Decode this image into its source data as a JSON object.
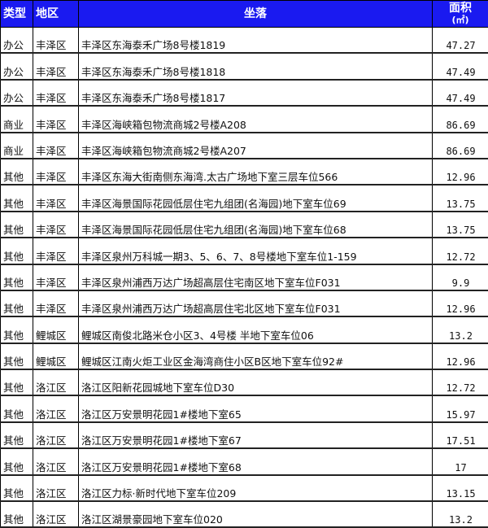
{
  "header": {
    "type": "类型",
    "region": "地区",
    "location": "坐落",
    "area": "面积",
    "area_unit": "(㎡)"
  },
  "header_color": "#1a1af0",
  "rows": [
    {
      "type": "办公",
      "region": "丰泽区",
      "location": "丰泽区东海泰禾广场8号楼1819",
      "area": "47.27"
    },
    {
      "type": "办公",
      "region": "丰泽区",
      "location": "丰泽区东海泰禾广场8号楼1818",
      "area": "47.49"
    },
    {
      "type": "办公",
      "region": "丰泽区",
      "location": "丰泽区东海泰禾广场8号楼1817",
      "area": "47.49"
    },
    {
      "type": "商业",
      "region": "丰泽区",
      "location": "丰泽区海峡箱包物流商城2号楼A208",
      "area": "86.69"
    },
    {
      "type": "商业",
      "region": "丰泽区",
      "location": "丰泽区海峡箱包物流商城2号楼A207",
      "area": "86.69"
    },
    {
      "type": "其他",
      "region": "丰泽区",
      "location": "丰泽区东海大街南侧东海湾.太古广场地下室三层车位566",
      "area": "12.96"
    },
    {
      "type": "其他",
      "region": "丰泽区",
      "location": "丰泽区海景国际花园低层住宅九组团(名海园)地下室车位69",
      "area": "13.75"
    },
    {
      "type": "其他",
      "region": "丰泽区",
      "location": "丰泽区海景国际花园低层住宅九组团(名海园)地下室车位68",
      "area": "13.75"
    },
    {
      "type": "其他",
      "region": "丰泽区",
      "location": "丰泽区泉州万科城一期3、5、6、7、8号楼地下室车位1-159",
      "area": "12.72"
    },
    {
      "type": "其他",
      "region": "丰泽区",
      "location": "丰泽区泉州浦西万达广场超高层住宅南区地下室车位F031",
      "area": "9.9"
    },
    {
      "type": "其他",
      "region": "丰泽区",
      "location": "丰泽区泉州浦西万达广场超高层住宅北区地下室车位F031",
      "area": "12.96"
    },
    {
      "type": "其他",
      "region": "鲤城区",
      "location": "鲤城区南俊北路米仓小区3、4号楼 半地下室车位06",
      "area": "13.2"
    },
    {
      "type": "其他",
      "region": "鲤城区",
      "location": "鲤城区江南火炬工业区金海湾商住小区B区地下室车位92#",
      "area": "12.96"
    },
    {
      "type": "其他",
      "region": "洛江区",
      "location": "洛江区阳新花园城地下室车位D30",
      "area": "12.72"
    },
    {
      "type": "其他",
      "region": "洛江区",
      "location": "洛江区万安景明花园1#楼地下室65",
      "area": "15.97"
    },
    {
      "type": "其他",
      "region": "洛江区",
      "location": "洛江区万安景明花园1#楼地下室67",
      "area": "17.51"
    },
    {
      "type": "其他",
      "region": "洛江区",
      "location": "洛江区万安景明花园1#楼地下室68",
      "area": "17"
    },
    {
      "type": "其他",
      "region": "洛江区",
      "location": "洛江区力标·新时代地下室车位209",
      "area": "13.15"
    },
    {
      "type": "其他",
      "region": "洛江区",
      "location": "洛江区湖景豪园地下室车位020",
      "area": "13.2"
    }
  ]
}
